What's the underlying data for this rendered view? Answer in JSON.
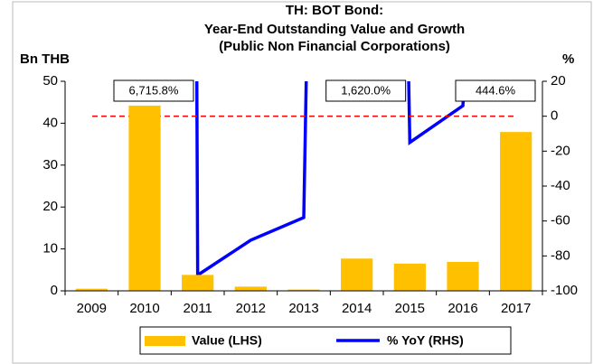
{
  "chart_data": {
    "type": "bar_line",
    "title": [
      "TH: BOT Bond:",
      "Year-End Outstanding Value and Growth",
      "(Public Non Financial Corporations)"
    ],
    "y_label": "Bn THB",
    "y2_label": "%",
    "categories": [
      "2009",
      "2010",
      "2011",
      "2012",
      "2013",
      "2014",
      "2015",
      "2016",
      "2017"
    ],
    "series": [
      {
        "name": "Value (LHS)",
        "type": "bar",
        "color": "#ffc000",
        "values": [
          0.5,
          44.2,
          3.8,
          1.0,
          0.3,
          7.7,
          6.5,
          6.9,
          37.9
        ]
      },
      {
        "name": "% YoY (RHS)",
        "type": "line",
        "axis": "y2",
        "color": "#0000ff",
        "values": [
          null,
          6715.8,
          -91,
          -71,
          -58,
          1620.0,
          -15,
          6,
          444.6
        ],
        "value_labels": [
          null,
          "6,715.8%",
          null,
          null,
          null,
          "1,620.0%",
          null,
          null,
          "444.6%"
        ]
      }
    ],
    "ylim": [
      0,
      50
    ],
    "yticks": [
      0,
      10,
      20,
      30,
      40,
      50
    ],
    "y2lim": [
      -100,
      20
    ],
    "y2ticks": [
      -100,
      -80,
      -60,
      -40,
      -20,
      0,
      20
    ],
    "reference_line": {
      "axis": "y2",
      "value": 0,
      "color": "#ff0000"
    }
  }
}
